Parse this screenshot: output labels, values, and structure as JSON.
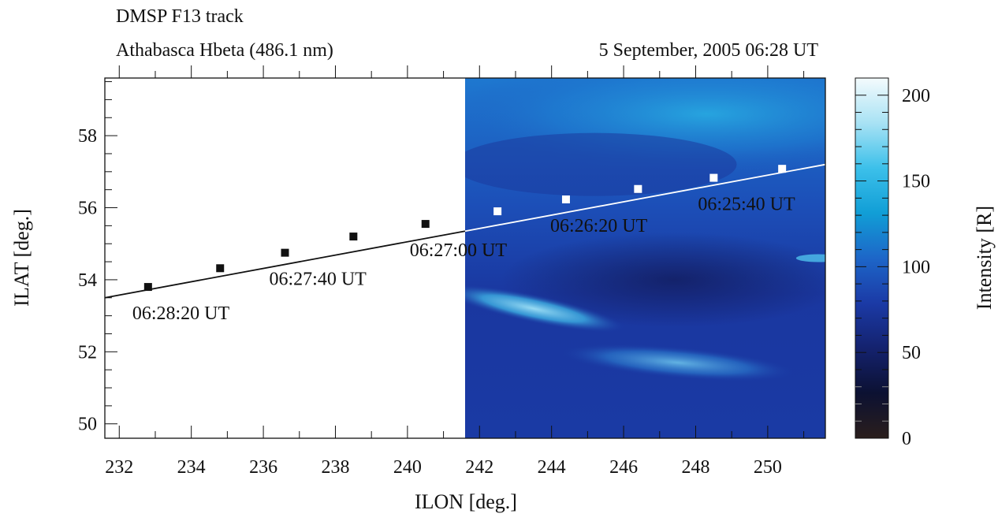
{
  "chart_data": {
    "type": "scatter",
    "title": "DMSP F13 track",
    "subtitle_left": "Athabasca  Hbeta (486.1 nm)",
    "subtitle_right": "5 September, 2005   06:28 UT",
    "xlabel": "ILON [deg.]",
    "ylabel": "ILAT [deg.]",
    "xlim": [
      231.6,
      251.6
    ],
    "ylim": [
      49.6,
      59.6
    ],
    "x_ticks": [
      232,
      234,
      236,
      238,
      240,
      242,
      244,
      246,
      248,
      250
    ],
    "y_ticks": [
      50,
      52,
      54,
      56,
      58
    ],
    "image_extent": {
      "x_start": 241.6,
      "x_end": 251.6
    },
    "track_line": {
      "x": [
        231.6,
        251.6
      ],
      "y": [
        53.5,
        57.2
      ]
    },
    "track_points": [
      {
        "x": 232.8,
        "y": 53.8,
        "label": "06:28:20 UT"
      },
      {
        "x": 234.8,
        "y": 54.32
      },
      {
        "x": 236.6,
        "y": 54.75,
        "label": "06:27:40 UT"
      },
      {
        "x": 238.5,
        "y": 55.2
      },
      {
        "x": 240.5,
        "y": 55.55,
        "label": "06:27:00 UT"
      },
      {
        "x": 242.5,
        "y": 55.9
      },
      {
        "x": 244.4,
        "y": 56.23,
        "label": "06:26:20 UT"
      },
      {
        "x": 246.4,
        "y": 56.52
      },
      {
        "x": 248.5,
        "y": 56.83,
        "label": "06:25:40 UT"
      },
      {
        "x": 250.4,
        "y": 57.08
      }
    ],
    "colorbar": {
      "label": "Intensity [R]",
      "min": 0,
      "max": 210,
      "ticks": [
        0,
        50,
        100,
        150,
        200
      ],
      "colors": [
        "#2a1e1c",
        "#0c1132",
        "#14226e",
        "#1b3aa6",
        "#1d66c8",
        "#119ed6",
        "#3cc0ea",
        "#a8e2f4",
        "#f4fbfd"
      ]
    }
  }
}
